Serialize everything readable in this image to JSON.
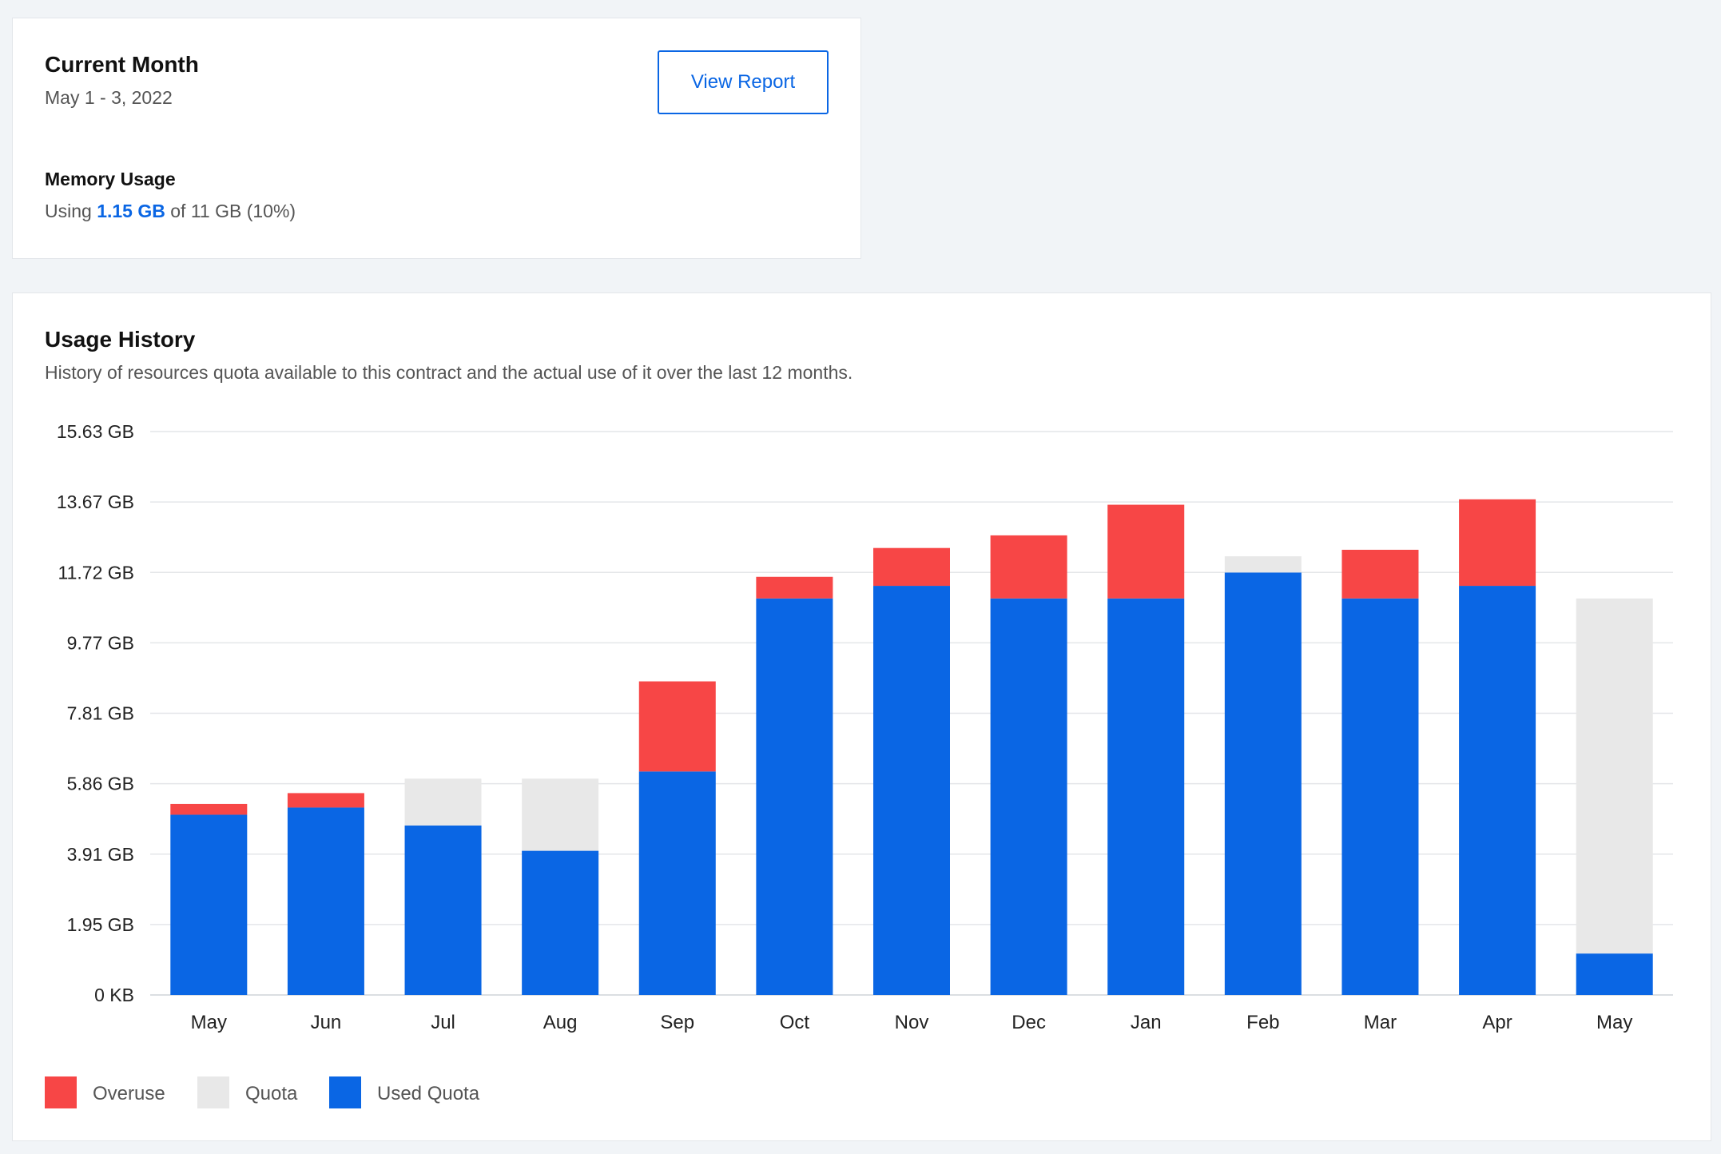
{
  "current": {
    "title": "Current Month",
    "date_range": "May 1 - 3, 2022",
    "view_report_label": "View Report",
    "memory_label": "Memory Usage",
    "using_prefix": "Using",
    "used_value": "1.15 GB",
    "using_suffix": "of 11 GB (10%)"
  },
  "history": {
    "title": "Usage History",
    "description": "History of resources quota available to this contract and the actual use of it over the last 12 months."
  },
  "colors": {
    "overuse": "#f74646",
    "quota": "#e8e8e8",
    "used": "#0a66e4",
    "grid": "#e4e6e9"
  },
  "chart_data": {
    "type": "bar",
    "stacked": true,
    "categories": [
      "May",
      "Jun",
      "Jul",
      "Aug",
      "Sep",
      "Oct",
      "Nov",
      "Dec",
      "Jan",
      "Feb",
      "Mar",
      "Apr",
      "May"
    ],
    "y_ticks": [
      "0 KB",
      "1.95 GB",
      "3.91 GB",
      "5.86 GB",
      "7.81 GB",
      "9.77 GB",
      "11.72 GB",
      "13.67 GB",
      "15.63 GB"
    ],
    "ylim": [
      0,
      15.63
    ],
    "y_unit": "GB",
    "series": [
      {
        "name": "Used Quota",
        "color": "#0a66e4",
        "values": [
          5.0,
          5.2,
          4.7,
          4.0,
          6.2,
          11.0,
          11.35,
          11.0,
          11.0,
          11.72,
          11.0,
          11.35,
          1.15
        ]
      },
      {
        "name": "Quota",
        "color": "#e8e8e8",
        "values": [
          0,
          0,
          1.3,
          2.0,
          0,
          0,
          0,
          0,
          0,
          0.45,
          0,
          0,
          9.85
        ]
      },
      {
        "name": "Overuse",
        "color": "#f74646",
        "values": [
          0.3,
          0.4,
          0,
          0,
          2.5,
          0.6,
          1.05,
          1.75,
          2.6,
          0,
          1.35,
          2.4,
          0
        ]
      }
    ],
    "legend": [
      "Overuse",
      "Quota",
      "Used Quota"
    ],
    "legend_position": "bottom-left",
    "grid": true
  }
}
